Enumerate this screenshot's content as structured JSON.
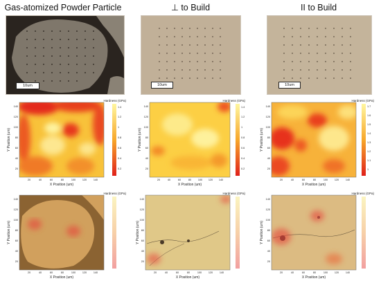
{
  "columns": [
    {
      "title": "Gas-atomized Powder Particle",
      "scale_label": "10um"
    },
    {
      "title": "⊥ to Build",
      "scale_label": "10um"
    },
    {
      "title": "II to Build",
      "scale_label": "10um"
    }
  ],
  "maps": [
    {
      "colorbar_title": "Hardness (GPa)",
      "ticks": [
        "1.4",
        "1.2",
        "1",
        "0.8",
        "0.6",
        "0.4",
        "0.2"
      ]
    },
    {
      "colorbar_title": "Hardness (GPa)",
      "ticks": [
        "1.4",
        "1.2",
        "1",
        "0.8",
        "0.6",
        "0.4",
        "0.2"
      ]
    },
    {
      "colorbar_title": "Hardness (GPa)",
      "ticks": [
        "1.7",
        "1.6",
        "1.5",
        "1.4",
        "1.3",
        "1.2",
        "1.1",
        "1"
      ]
    }
  ],
  "overlays": [
    {
      "colorbar_title": "Hardness (GPa)"
    },
    {
      "colorbar_title": "Hardness (GPa)"
    },
    {
      "colorbar_title": "Hardness (GPa)"
    }
  ],
  "axes": {
    "xlabel": "X Position (um)",
    "ylabel": "Y Position (um)",
    "x_ticks": [
      "20",
      "40",
      "60",
      "80",
      "100",
      "120",
      "140"
    ],
    "y_ticks": [
      "140",
      "120",
      "100",
      "80",
      "60",
      "40",
      "20"
    ]
  },
  "colors": {
    "low": "#e0201a",
    "mid": "#f7a72a",
    "high": "#fff7a0",
    "micro_background_1": "#2b2520",
    "micro_background_2": "#c2b29a"
  }
}
